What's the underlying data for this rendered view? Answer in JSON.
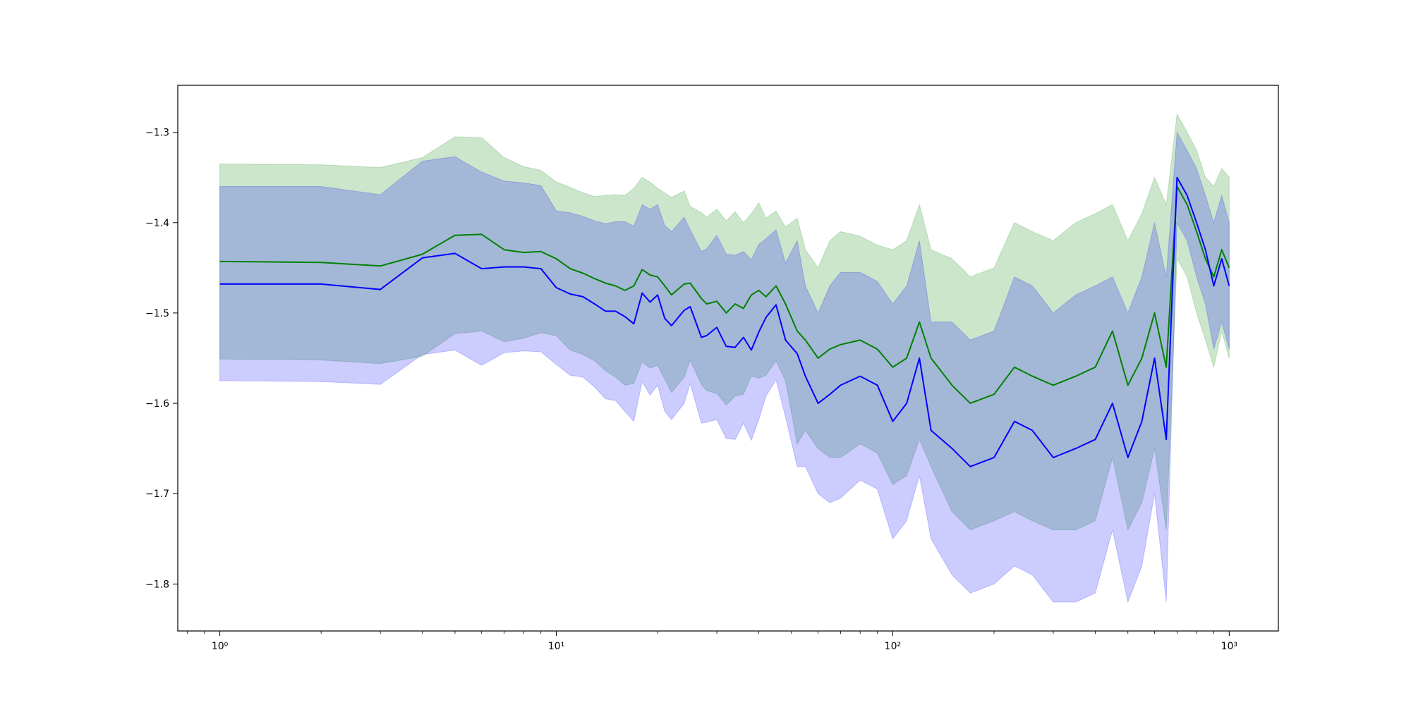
{
  "chart_data": {
    "type": "line",
    "title": "",
    "xlabel": "",
    "ylabel": "",
    "xscale": "log",
    "xlim": [
      0.75,
      1400
    ],
    "ylim": [
      -1.852,
      -1.248
    ],
    "x_ticks": [
      {
        "value": 1,
        "label": "10⁰"
      },
      {
        "value": 10,
        "label": "10¹"
      },
      {
        "value": 100,
        "label": "10²"
      },
      {
        "value": 1000,
        "label": "10³"
      }
    ],
    "y_ticks": [
      {
        "value": -1.3,
        "label": "−1.3"
      },
      {
        "value": -1.4,
        "label": "−1.4"
      },
      {
        "value": -1.5,
        "label": "−1.5"
      },
      {
        "value": -1.6,
        "label": "−1.6"
      },
      {
        "value": -1.7,
        "label": "−1.7"
      },
      {
        "value": -1.8,
        "label": "−1.8"
      }
    ],
    "grid": false,
    "legend": "none",
    "series": [
      {
        "color": "#008000",
        "band_color": "#008000",
        "band_opacity": 0.2,
        "x": [
          1,
          2,
          3,
          4,
          5,
          6,
          7,
          8,
          9,
          10,
          11,
          12,
          13,
          14,
          15,
          16,
          17,
          18,
          19,
          20,
          21,
          22,
          24,
          25,
          27,
          28,
          30,
          32,
          34,
          36,
          38,
          40,
          42,
          45,
          48,
          52,
          55,
          60,
          65,
          70,
          80,
          90,
          100,
          110,
          120,
          130,
          150,
          170,
          200,
          230,
          260,
          300,
          350,
          400,
          450,
          500,
          550,
          600,
          650,
          700,
          750,
          800,
          850,
          900,
          950,
          1000
        ],
        "y": [
          -1.443,
          -1.444,
          -1.448,
          -1.435,
          -1.414,
          -1.413,
          -1.43,
          -1.433,
          -1.432,
          -1.44,
          -1.451,
          -1.456,
          -1.462,
          -1.467,
          -1.47,
          -1.475,
          -1.47,
          -1.452,
          -1.458,
          -1.46,
          -1.47,
          -1.48,
          -1.468,
          -1.467,
          -1.484,
          -1.49,
          -1.487,
          -1.5,
          -1.49,
          -1.495,
          -1.48,
          -1.475,
          -1.482,
          -1.47,
          -1.49,
          -1.52,
          -1.53,
          -1.55,
          -1.54,
          -1.535,
          -1.53,
          -1.54,
          -1.56,
          -1.55,
          -1.51,
          -1.55,
          -1.58,
          -1.6,
          -1.59,
          -1.56,
          -1.57,
          -1.58,
          -1.57,
          -1.56,
          -1.52,
          -1.58,
          -1.55,
          -1.5,
          -1.56,
          -1.36,
          -1.38,
          -1.41,
          -1.44,
          -1.46,
          -1.43,
          -1.45
        ],
        "upper": [
          -1.335,
          -1.336,
          -1.339,
          -1.328,
          -1.305,
          -1.306,
          -1.328,
          -1.338,
          -1.342,
          -1.355,
          -1.361,
          -1.367,
          -1.371,
          -1.37,
          -1.369,
          -1.37,
          -1.362,
          -1.35,
          -1.355,
          -1.362,
          -1.367,
          -1.372,
          -1.365,
          -1.382,
          -1.389,
          -1.394,
          -1.385,
          -1.398,
          -1.388,
          -1.4,
          -1.39,
          -1.378,
          -1.395,
          -1.387,
          -1.405,
          -1.395,
          -1.43,
          -1.45,
          -1.42,
          -1.41,
          -1.415,
          -1.425,
          -1.43,
          -1.42,
          -1.38,
          -1.43,
          -1.44,
          -1.46,
          -1.45,
          -1.4,
          -1.41,
          -1.42,
          -1.4,
          -1.39,
          -1.38,
          -1.42,
          -1.39,
          -1.35,
          -1.38,
          -1.28,
          -1.3,
          -1.32,
          -1.35,
          -1.36,
          -1.34,
          -1.35
        ],
        "lower": [
          -1.551,
          -1.552,
          -1.556,
          -1.548,
          -1.523,
          -1.52,
          -1.532,
          -1.528,
          -1.522,
          -1.525,
          -1.541,
          -1.546,
          -1.553,
          -1.564,
          -1.571,
          -1.58,
          -1.578,
          -1.554,
          -1.561,
          -1.558,
          -1.573,
          -1.588,
          -1.571,
          -1.552,
          -1.579,
          -1.586,
          -1.589,
          -1.602,
          -1.592,
          -1.59,
          -1.57,
          -1.572,
          -1.569,
          -1.553,
          -1.575,
          -1.645,
          -1.63,
          -1.65,
          -1.66,
          -1.66,
          -1.645,
          -1.655,
          -1.69,
          -1.68,
          -1.64,
          -1.67,
          -1.72,
          -1.74,
          -1.73,
          -1.72,
          -1.73,
          -1.74,
          -1.74,
          -1.73,
          -1.66,
          -1.74,
          -1.71,
          -1.65,
          -1.74,
          -1.44,
          -1.46,
          -1.5,
          -1.53,
          -1.56,
          -1.52,
          -1.55
        ]
      },
      {
        "color": "#0000ff",
        "band_color": "#0000ff",
        "band_opacity": 0.2,
        "x": [
          1,
          2,
          3,
          4,
          5,
          6,
          7,
          8,
          9,
          10,
          11,
          12,
          13,
          14,
          15,
          16,
          17,
          18,
          19,
          20,
          21,
          22,
          24,
          25,
          27,
          28,
          30,
          32,
          34,
          36,
          38,
          40,
          42,
          45,
          48,
          52,
          55,
          60,
          65,
          70,
          80,
          90,
          100,
          110,
          120,
          130,
          150,
          170,
          200,
          230,
          260,
          300,
          350,
          400,
          450,
          500,
          550,
          600,
          650,
          700,
          750,
          800,
          850,
          900,
          950,
          1000
        ],
        "y": [
          -1.468,
          -1.468,
          -1.474,
          -1.439,
          -1.434,
          -1.451,
          -1.449,
          -1.449,
          -1.451,
          -1.472,
          -1.479,
          -1.482,
          -1.49,
          -1.498,
          -1.498,
          -1.504,
          -1.512,
          -1.478,
          -1.488,
          -1.48,
          -1.506,
          -1.514,
          -1.497,
          -1.493,
          -1.527,
          -1.525,
          -1.516,
          -1.537,
          -1.538,
          -1.527,
          -1.541,
          -1.521,
          -1.505,
          -1.491,
          -1.53,
          -1.545,
          -1.57,
          -1.6,
          -1.59,
          -1.58,
          -1.57,
          -1.58,
          -1.62,
          -1.6,
          -1.55,
          -1.63,
          -1.65,
          -1.67,
          -1.66,
          -1.62,
          -1.63,
          -1.66,
          -1.65,
          -1.64,
          -1.6,
          -1.66,
          -1.62,
          -1.55,
          -1.64,
          -1.35,
          -1.37,
          -1.4,
          -1.43,
          -1.47,
          -1.44,
          -1.47
        ],
        "upper": [
          -1.36,
          -1.36,
          -1.369,
          -1.332,
          -1.327,
          -1.344,
          -1.354,
          -1.356,
          -1.359,
          -1.387,
          -1.389,
          -1.393,
          -1.398,
          -1.401,
          -1.399,
          -1.399,
          -1.404,
          -1.38,
          -1.385,
          -1.38,
          -1.403,
          -1.41,
          -1.394,
          -1.408,
          -1.432,
          -1.429,
          -1.414,
          -1.435,
          -1.436,
          -1.432,
          -1.441,
          -1.424,
          -1.418,
          -1.408,
          -1.445,
          -1.42,
          -1.47,
          -1.5,
          -1.47,
          -1.455,
          -1.455,
          -1.465,
          -1.49,
          -1.47,
          -1.42,
          -1.51,
          -1.51,
          -1.53,
          -1.52,
          -1.46,
          -1.47,
          -1.5,
          -1.48,
          -1.47,
          -1.46,
          -1.5,
          -1.46,
          -1.4,
          -1.46,
          -1.3,
          -1.32,
          -1.34,
          -1.37,
          -1.4,
          -1.37,
          -1.4
        ],
        "lower": [
          -1.575,
          -1.576,
          -1.579,
          -1.546,
          -1.541,
          -1.558,
          -1.544,
          -1.542,
          -1.543,
          -1.557,
          -1.569,
          -1.571,
          -1.582,
          -1.595,
          -1.597,
          -1.609,
          -1.62,
          -1.576,
          -1.591,
          -1.58,
          -1.609,
          -1.618,
          -1.6,
          -1.578,
          -1.622,
          -1.621,
          -1.618,
          -1.639,
          -1.64,
          -1.622,
          -1.641,
          -1.618,
          -1.592,
          -1.574,
          -1.615,
          -1.67,
          -1.67,
          -1.7,
          -1.71,
          -1.705,
          -1.685,
          -1.695,
          -1.75,
          -1.73,
          -1.68,
          -1.75,
          -1.79,
          -1.81,
          -1.8,
          -1.78,
          -1.79,
          -1.82,
          -1.82,
          -1.81,
          -1.74,
          -1.82,
          -1.78,
          -1.7,
          -1.82,
          -1.4,
          -1.42,
          -1.46,
          -1.49,
          -1.54,
          -1.51,
          -1.54
        ]
      }
    ]
  }
}
